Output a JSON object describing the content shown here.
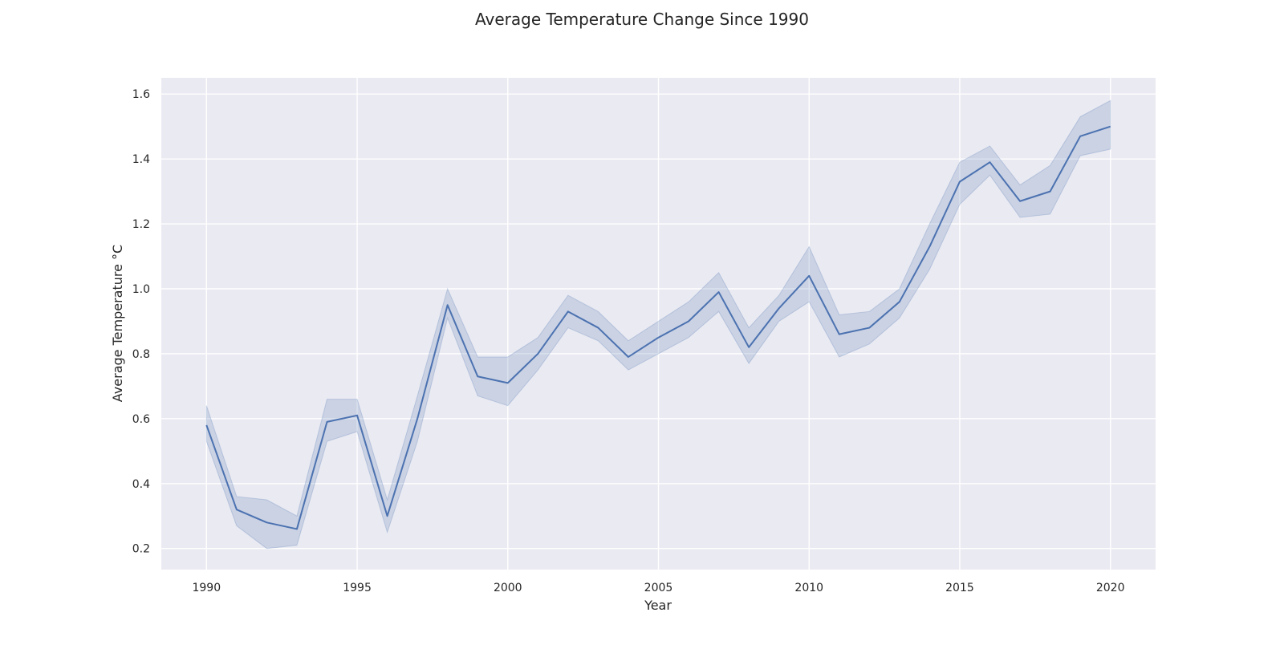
{
  "chart_data": {
    "type": "line",
    "title": "Average Temperature Change Since 1990",
    "xlabel": "Year",
    "ylabel": "Average Temperature °C",
    "xlim": [
      1988.5,
      2021.5
    ],
    "ylim": [
      0.135,
      1.65
    ],
    "x_ticks": [
      1990,
      1995,
      2000,
      2005,
      2010,
      2015,
      2020
    ],
    "y_ticks": [
      0.2,
      0.4,
      0.6,
      0.8,
      1.0,
      1.2,
      1.4,
      1.6
    ],
    "y_tick_labels": [
      "0.2",
      "0.4",
      "0.6",
      "0.8",
      "1.0",
      "1.2",
      "1.4",
      "1.6"
    ],
    "grid": true,
    "x": [
      1990,
      1991,
      1992,
      1993,
      1994,
      1995,
      1996,
      1997,
      1998,
      1999,
      2000,
      2001,
      2002,
      2003,
      2004,
      2005,
      2006,
      2007,
      2008,
      2009,
      2010,
      2011,
      2012,
      2013,
      2014,
      2015,
      2016,
      2017,
      2018,
      2019,
      2020
    ],
    "series": [
      {
        "values": [
          0.58,
          0.32,
          0.28,
          0.26,
          0.59,
          0.61,
          0.3,
          0.6,
          0.95,
          0.73,
          0.71,
          0.8,
          0.93,
          0.88,
          0.79,
          0.85,
          0.9,
          0.99,
          0.82,
          0.94,
          1.04,
          0.86,
          0.88,
          0.96,
          1.13,
          1.33,
          1.39,
          1.27,
          1.3,
          1.47,
          1.5
        ],
        "lower": [
          0.53,
          0.27,
          0.2,
          0.21,
          0.53,
          0.56,
          0.25,
          0.53,
          0.91,
          0.67,
          0.64,
          0.75,
          0.88,
          0.84,
          0.75,
          0.8,
          0.85,
          0.93,
          0.77,
          0.9,
          0.96,
          0.79,
          0.83,
          0.91,
          1.06,
          1.26,
          1.35,
          1.22,
          1.23,
          1.41,
          1.43
        ],
        "upper": [
          0.64,
          0.36,
          0.35,
          0.3,
          0.66,
          0.66,
          0.35,
          0.67,
          1.0,
          0.79,
          0.79,
          0.85,
          0.98,
          0.93,
          0.84,
          0.9,
          0.96,
          1.05,
          0.88,
          0.98,
          1.13,
          0.92,
          0.93,
          1.0,
          1.2,
          1.39,
          1.44,
          1.32,
          1.38,
          1.53,
          1.58
        ],
        "color": "#4c72b0",
        "band_color": "#4c72b0"
      }
    ],
    "background_color": "#eaeaf2",
    "grid_color": "#ffffff"
  }
}
